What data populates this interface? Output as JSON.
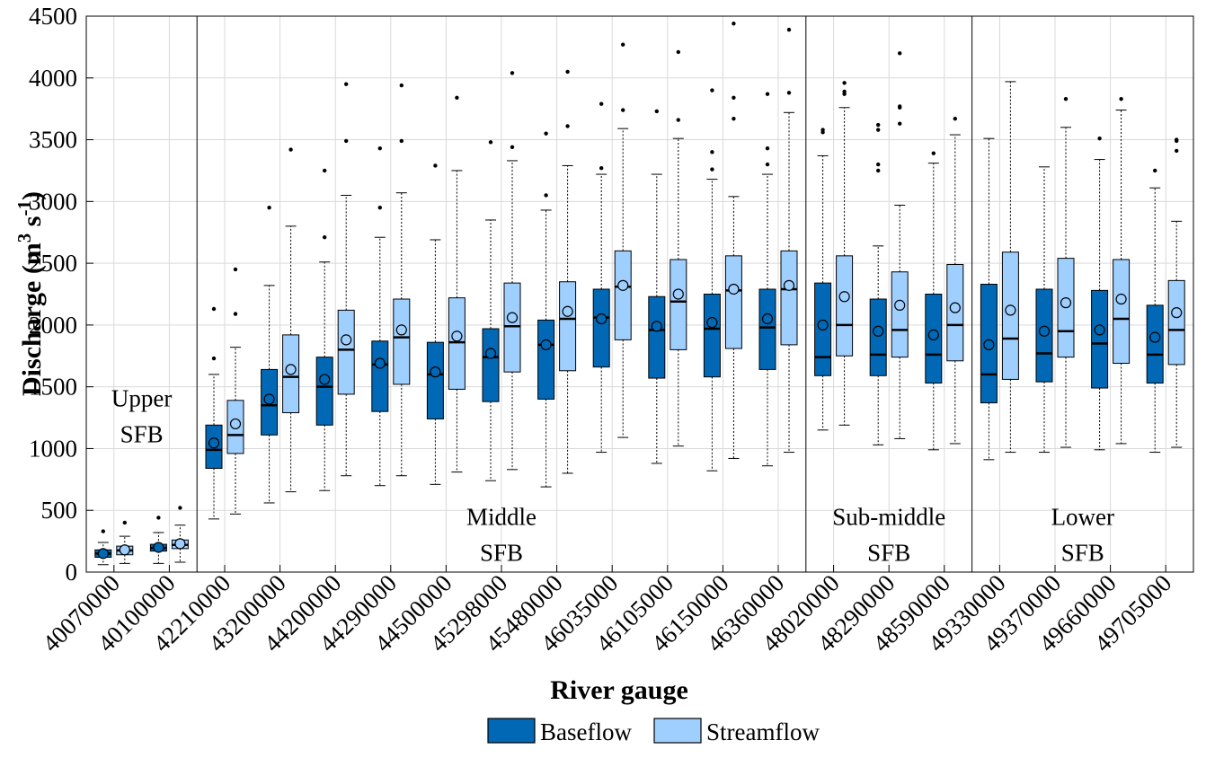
{
  "chart_data": {
    "type": "boxplot",
    "xlabel": "River gauge",
    "ylabel": {
      "main": "Discharge (m",
      "sup1": "3",
      "mid": " s",
      "sup2": "-1",
      "end": ")"
    },
    "ylim": [
      0,
      4500
    ],
    "yticks": [
      0,
      500,
      1000,
      1500,
      2000,
      2500,
      3000,
      3500,
      4000,
      4500
    ],
    "grid": true,
    "legend": {
      "position": "bottom-center",
      "entries": [
        "Baseflow",
        "Streamflow"
      ]
    },
    "colors": {
      "baseflow": "#0068b4",
      "streamflow": "#9fcfff",
      "edge": "#000000",
      "grid": "#d9d9d9"
    },
    "regions": [
      {
        "name": "Upper SFB",
        "lines": [
          "Upper",
          "SFB"
        ],
        "from": 0,
        "to": 1,
        "label_y": [
          1340,
          1050
        ]
      },
      {
        "name": "Middle SFB",
        "lines": [
          "Middle",
          "SFB"
        ],
        "from": 2,
        "to": 12,
        "label_y": [
          380,
          90
        ]
      },
      {
        "name": "Sub-middle SFB",
        "lines": [
          "Sub-middle",
          "SFB"
        ],
        "from": 13,
        "to": 15,
        "label_y": [
          380,
          90
        ]
      },
      {
        "name": "Lower SFB",
        "lines": [
          "Lower",
          "SFB"
        ],
        "from": 16,
        "to": 19,
        "label_y": [
          380,
          90
        ]
      }
    ],
    "categories": [
      "40070000",
      "40100000",
      "42210000",
      "43200000",
      "44200000",
      "44290000",
      "44500000",
      "45298000",
      "45480000",
      "46035000",
      "46105000",
      "46150000",
      "46360000",
      "48020000",
      "48290000",
      "48590000",
      "49330000",
      "49370000",
      "49660000",
      "49705000"
    ],
    "series": [
      {
        "name": "Baseflow",
        "boxes": [
          {
            "wl": 60,
            "q1": 120,
            "med": 150,
            "q3": 180,
            "wh": 240,
            "mean": 150,
            "out": [
              330
            ]
          },
          {
            "wl": 70,
            "q1": 170,
            "med": 195,
            "q3": 225,
            "wh": 320,
            "mean": 200,
            "out": [
              440
            ]
          },
          {
            "wl": 430,
            "q1": 840,
            "med": 990,
            "q3": 1190,
            "wh": 1600,
            "mean": 1045,
            "out": [
              1730,
              2130
            ]
          },
          {
            "wl": 560,
            "q1": 1110,
            "med": 1350,
            "q3": 1640,
            "wh": 2320,
            "mean": 1400,
            "out": [
              2950
            ]
          },
          {
            "wl": 660,
            "q1": 1190,
            "med": 1500,
            "q3": 1740,
            "wh": 2510,
            "mean": 1560,
            "out": [
              2710,
              3250
            ]
          },
          {
            "wl": 700,
            "q1": 1300,
            "med": 1680,
            "q3": 1870,
            "wh": 2710,
            "mean": 1690,
            "out": [
              2950,
              3430
            ]
          },
          {
            "wl": 710,
            "q1": 1240,
            "med": 1600,
            "q3": 1860,
            "wh": 2690,
            "mean": 1620,
            "out": [
              3290
            ]
          },
          {
            "wl": 740,
            "q1": 1380,
            "med": 1740,
            "q3": 1970,
            "wh": 2850,
            "mean": 1770,
            "out": [
              3480
            ]
          },
          {
            "wl": 690,
            "q1": 1400,
            "med": 1840,
            "q3": 2040,
            "wh": 2930,
            "mean": 1840,
            "out": [
              3050,
              3550
            ]
          },
          {
            "wl": 970,
            "q1": 1660,
            "med": 2060,
            "q3": 2290,
            "wh": 3220,
            "mean": 2050,
            "out": [
              3270,
              3790
            ]
          },
          {
            "wl": 880,
            "q1": 1570,
            "med": 1960,
            "q3": 2230,
            "wh": 3220,
            "mean": 1990,
            "out": [
              3730
            ]
          },
          {
            "wl": 820,
            "q1": 1580,
            "med": 1970,
            "q3": 2250,
            "wh": 3180,
            "mean": 2020,
            "out": [
              3260,
              3400,
              3900
            ]
          },
          {
            "wl": 860,
            "q1": 1640,
            "med": 1980,
            "q3": 2290,
            "wh": 3220,
            "mean": 2050,
            "out": [
              3300,
              3430,
              3870
            ]
          },
          {
            "wl": 1150,
            "q1": 1590,
            "med": 1740,
            "q3": 2340,
            "wh": 3370,
            "mean": 2000,
            "out": [
              3560,
              3580
            ]
          },
          {
            "wl": 1030,
            "q1": 1590,
            "med": 1760,
            "q3": 2210,
            "wh": 2640,
            "mean": 1950,
            "out": [
              3250,
              3300,
              3580,
              3620
            ]
          },
          {
            "wl": 990,
            "q1": 1530,
            "med": 1760,
            "q3": 2250,
            "wh": 3310,
            "mean": 1920,
            "out": [
              3390
            ]
          },
          {
            "wl": 910,
            "q1": 1370,
            "med": 1600,
            "q3": 2330,
            "wh": 3510,
            "mean": 1840,
            "out": []
          },
          {
            "wl": 970,
            "q1": 1540,
            "med": 1770,
            "q3": 2290,
            "wh": 3280,
            "mean": 1950,
            "out": []
          },
          {
            "wl": 990,
            "q1": 1490,
            "med": 1850,
            "q3": 2280,
            "wh": 3340,
            "mean": 1960,
            "out": [
              3510
            ]
          },
          {
            "wl": 970,
            "q1": 1530,
            "med": 1760,
            "q3": 2160,
            "wh": 3110,
            "mean": 1900,
            "out": [
              3250
            ]
          }
        ]
      },
      {
        "name": "Streamflow",
        "boxes": [
          {
            "wl": 70,
            "q1": 140,
            "med": 175,
            "q3": 210,
            "wh": 290,
            "mean": 180,
            "out": [
              400
            ]
          },
          {
            "wl": 80,
            "q1": 190,
            "med": 220,
            "q3": 260,
            "wh": 380,
            "mean": 230,
            "out": [
              520
            ]
          },
          {
            "wl": 470,
            "q1": 960,
            "med": 1110,
            "q3": 1390,
            "wh": 1820,
            "mean": 1200,
            "out": [
              2090,
              2450
            ]
          },
          {
            "wl": 650,
            "q1": 1290,
            "med": 1580,
            "q3": 1920,
            "wh": 2800,
            "mean": 1640,
            "out": [
              3420
            ]
          },
          {
            "wl": 780,
            "q1": 1440,
            "med": 1800,
            "q3": 2120,
            "wh": 3050,
            "mean": 1880,
            "out": [
              3490,
              3950
            ]
          },
          {
            "wl": 780,
            "q1": 1520,
            "med": 1900,
            "q3": 2210,
            "wh": 3070,
            "mean": 1960,
            "out": [
              3490,
              3940
            ]
          },
          {
            "wl": 810,
            "q1": 1480,
            "med": 1860,
            "q3": 2220,
            "wh": 3250,
            "mean": 1910,
            "out": [
              3840
            ]
          },
          {
            "wl": 830,
            "q1": 1620,
            "med": 1990,
            "q3": 2340,
            "wh": 3330,
            "mean": 2060,
            "out": [
              3440,
              4040
            ]
          },
          {
            "wl": 800,
            "q1": 1630,
            "med": 2050,
            "q3": 2350,
            "wh": 3290,
            "mean": 2110,
            "out": [
              3610,
              4050
            ]
          },
          {
            "wl": 1090,
            "q1": 1880,
            "med": 2310,
            "q3": 2600,
            "wh": 3590,
            "mean": 2320,
            "out": [
              3740,
              4270
            ]
          },
          {
            "wl": 1020,
            "q1": 1800,
            "med": 2190,
            "q3": 2530,
            "wh": 3510,
            "mean": 2250,
            "out": [
              3660,
              4210
            ]
          },
          {
            "wl": 920,
            "q1": 1810,
            "med": 2280,
            "q3": 2560,
            "wh": 3040,
            "mean": 2290,
            "out": [
              3670,
              3840,
              4440
            ]
          },
          {
            "wl": 970,
            "q1": 1840,
            "med": 2290,
            "q3": 2600,
            "wh": 3720,
            "mean": 2320,
            "out": [
              3880,
              4390
            ]
          },
          {
            "wl": 1190,
            "q1": 1750,
            "med": 2000,
            "q3": 2560,
            "wh": 3760,
            "mean": 2230,
            "out": [
              3870,
              3890,
              3960
            ]
          },
          {
            "wl": 1080,
            "q1": 1740,
            "med": 1960,
            "q3": 2430,
            "wh": 2970,
            "mean": 2160,
            "out": [
              3630,
              3760,
              3770,
              4200
            ]
          },
          {
            "wl": 1040,
            "q1": 1710,
            "med": 2000,
            "q3": 2490,
            "wh": 3540,
            "mean": 2140,
            "out": [
              3670
            ]
          },
          {
            "wl": 970,
            "q1": 1560,
            "med": 1890,
            "q3": 2590,
            "wh": 3970,
            "mean": 2120,
            "out": []
          },
          {
            "wl": 1010,
            "q1": 1740,
            "med": 1950,
            "q3": 2540,
            "wh": 3600,
            "mean": 2180,
            "out": [
              3830
            ]
          },
          {
            "wl": 1040,
            "q1": 1690,
            "med": 2050,
            "q3": 2530,
            "wh": 3740,
            "mean": 2210,
            "out": [
              3830
            ]
          },
          {
            "wl": 1010,
            "q1": 1680,
            "med": 1960,
            "q3": 2360,
            "wh": 2840,
            "mean": 2100,
            "out": [
              3410,
              3490,
              3500
            ]
          }
        ]
      }
    ]
  }
}
